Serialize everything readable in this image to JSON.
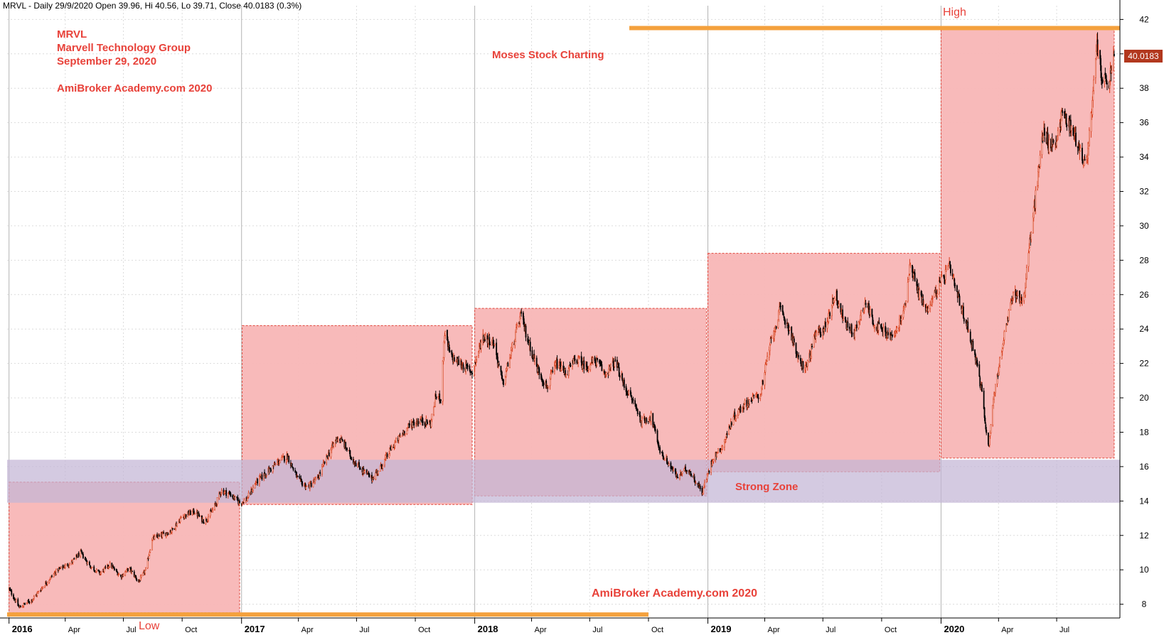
{
  "header": {
    "text": "MRVL - Daily 29/9/2020 Open 39.96, Hi 40.56, Lo 39.71, Close 40.0183 (0.3%)"
  },
  "annotations": {
    "ticker": "MRVL",
    "company": "Marvell Technology Group",
    "date": "September 29, 2020",
    "site_top": "AmiBroker Academy.com  2020",
    "site_bottom": "AmiBroker Academy.com  2020",
    "moses": "Moses Stock Charting",
    "high": "High",
    "low": "Low",
    "strong_zone": "Strong Zone"
  },
  "last_price": "40.0183",
  "colors": {
    "year_box_fill": "#f8b6b6",
    "year_box_border": "#e0453a",
    "strong_zone_fill": "#c4b6d6",
    "level_line": "#f4a13d",
    "annotation_text": "#e8423a",
    "candle_up": "#d8401e",
    "candle_down": "#000000",
    "last_price_box": "#b2381e"
  },
  "chart_data": {
    "type": "candlestick",
    "symbol": "MRVL",
    "interval": "Daily",
    "y_ticks": [
      8,
      10,
      12,
      14,
      16,
      18,
      20,
      22,
      24,
      26,
      28,
      30,
      32,
      34,
      36,
      38,
      40,
      42
    ],
    "ylim": [
      7.2,
      42.8
    ],
    "x_range": [
      "2016-01-01",
      "2020-10-08"
    ],
    "x_ticks": [
      {
        "label": "2016",
        "date": "2016-01-04",
        "major": true
      },
      {
        "label": "Apr",
        "date": "2016-04-01",
        "major": false
      },
      {
        "label": "Jul",
        "date": "2016-07-01",
        "major": false
      },
      {
        "label": "Oct",
        "date": "2016-10-01",
        "major": false
      },
      {
        "label": "2017",
        "date": "2017-01-02",
        "major": true
      },
      {
        "label": "Apr",
        "date": "2017-04-01",
        "major": false
      },
      {
        "label": "Jul",
        "date": "2017-07-01",
        "major": false
      },
      {
        "label": "Oct",
        "date": "2017-10-01",
        "major": false
      },
      {
        "label": "2018",
        "date": "2018-01-02",
        "major": true
      },
      {
        "label": "Apr",
        "date": "2018-04-01",
        "major": false
      },
      {
        "label": "Jul",
        "date": "2018-07-01",
        "major": false
      },
      {
        "label": "Oct",
        "date": "2018-10-01",
        "major": false
      },
      {
        "label": "2019",
        "date": "2019-01-02",
        "major": true
      },
      {
        "label": "Apr",
        "date": "2019-04-01",
        "major": false
      },
      {
        "label": "Jul",
        "date": "2019-07-01",
        "major": false
      },
      {
        "label": "Oct",
        "date": "2019-10-01",
        "major": false
      },
      {
        "label": "2020",
        "date": "2020-01-02",
        "major": true
      },
      {
        "label": "Apr",
        "date": "2020-04-01",
        "major": false
      },
      {
        "label": "Jul",
        "date": "2020-07-01",
        "major": false
      }
    ],
    "year_ranges": [
      {
        "year": 2016,
        "start": "2016-01-04",
        "end": "2016-12-30",
        "low": 7.5,
        "high": 15.1
      },
      {
        "year": 2017,
        "start": "2017-01-03",
        "end": "2017-12-29",
        "low": 13.8,
        "high": 24.2
      },
      {
        "year": 2018,
        "start": "2018-01-02",
        "end": "2018-12-31",
        "low": 14.3,
        "high": 25.2
      },
      {
        "year": 2019,
        "start": "2019-01-02",
        "end": "2019-12-31",
        "low": 15.7,
        "high": 28.4
      },
      {
        "year": 2020,
        "start": "2020-01-02",
        "end": "2020-09-29",
        "low": 16.5,
        "high": 41.4
      }
    ],
    "strong_zone": {
      "start": "2016-01-01",
      "end": "2020-10-08",
      "low": 13.9,
      "high": 16.4
    },
    "levels": [
      {
        "kind": "high",
        "value": 41.5,
        "start": "2018-09-01",
        "end": "2020-10-08"
      },
      {
        "kind": "low",
        "value": 7.4,
        "start": "2016-01-01",
        "end": "2018-10-01"
      }
    ],
    "price_path": [
      [
        "2016-01-04",
        8.9
      ],
      [
        "2016-01-20",
        7.8
      ],
      [
        "2016-02-10",
        8.3
      ],
      [
        "2016-03-01",
        9.2
      ],
      [
        "2016-03-20",
        10.0
      ],
      [
        "2016-04-10",
        10.4
      ],
      [
        "2016-04-25",
        11.0
      ],
      [
        "2016-05-10",
        10.2
      ],
      [
        "2016-05-25",
        9.8
      ],
      [
        "2016-06-10",
        10.3
      ],
      [
        "2016-06-27",
        9.6
      ],
      [
        "2016-07-10",
        10.1
      ],
      [
        "2016-07-25",
        9.3
      ],
      [
        "2016-08-05",
        10.0
      ],
      [
        "2016-08-15",
        11.8
      ],
      [
        "2016-08-30",
        12.0
      ],
      [
        "2016-09-15",
        12.3
      ],
      [
        "2016-10-01",
        13.1
      ],
      [
        "2016-10-20",
        13.4
      ],
      [
        "2016-11-05",
        12.8
      ],
      [
        "2016-11-20",
        13.6
      ],
      [
        "2016-12-01",
        14.6
      ],
      [
        "2016-12-15",
        14.4
      ],
      [
        "2016-12-30",
        13.9
      ],
      [
        "2017-01-10",
        14.1
      ],
      [
        "2017-01-25",
        15.1
      ],
      [
        "2017-02-15",
        15.8
      ],
      [
        "2017-03-01",
        16.3
      ],
      [
        "2017-03-15",
        16.6
      ],
      [
        "2017-04-01",
        15.2
      ],
      [
        "2017-04-15",
        14.8
      ],
      [
        "2017-05-01",
        15.3
      ],
      [
        "2017-05-15",
        16.5
      ],
      [
        "2017-06-01",
        17.7
      ],
      [
        "2017-06-10",
        17.4
      ],
      [
        "2017-06-25",
        16.4
      ],
      [
        "2017-07-10",
        15.8
      ],
      [
        "2017-07-25",
        15.3
      ],
      [
        "2017-08-10",
        16.1
      ],
      [
        "2017-08-25",
        17.1
      ],
      [
        "2017-09-10",
        17.9
      ],
      [
        "2017-09-25",
        18.5
      ],
      [
        "2017-10-10",
        18.7
      ],
      [
        "2017-10-25",
        18.5
      ],
      [
        "2017-11-02",
        20.1
      ],
      [
        "2017-11-10",
        20.0
      ],
      [
        "2017-11-16",
        23.8
      ],
      [
        "2017-11-25",
        22.4
      ],
      [
        "2017-12-10",
        22.0
      ],
      [
        "2017-12-29",
        21.5
      ],
      [
        "2018-01-15",
        23.6
      ],
      [
        "2018-02-01",
        23.2
      ],
      [
        "2018-02-15",
        20.8
      ],
      [
        "2018-03-01",
        22.8
      ],
      [
        "2018-03-15",
        24.8
      ],
      [
        "2018-03-25",
        23.5
      ],
      [
        "2018-04-10",
        21.7
      ],
      [
        "2018-04-25",
        20.6
      ],
      [
        "2018-05-10",
        22.0
      ],
      [
        "2018-05-25",
        21.4
      ],
      [
        "2018-06-10",
        22.3
      ],
      [
        "2018-06-25",
        21.8
      ],
      [
        "2018-07-10",
        22.2
      ],
      [
        "2018-07-25",
        21.4
      ],
      [
        "2018-08-10",
        22.1
      ],
      [
        "2018-08-25",
        20.6
      ],
      [
        "2018-09-10",
        19.6
      ],
      [
        "2018-09-20",
        18.6
      ],
      [
        "2018-10-05",
        18.9
      ],
      [
        "2018-10-20",
        16.8
      ],
      [
        "2018-11-01",
        16.2
      ],
      [
        "2018-11-15",
        15.4
      ],
      [
        "2018-12-01",
        15.9
      ],
      [
        "2018-12-15",
        15.1
      ],
      [
        "2018-12-24",
        14.5
      ],
      [
        "2019-01-10",
        16.5
      ],
      [
        "2019-01-25",
        17.2
      ],
      [
        "2019-02-10",
        18.8
      ],
      [
        "2019-02-25",
        19.5
      ],
      [
        "2019-03-10",
        19.9
      ],
      [
        "2019-03-25",
        20.2
      ],
      [
        "2019-04-10",
        23.2
      ],
      [
        "2019-04-25",
        25.1
      ],
      [
        "2019-05-10",
        24.0
      ],
      [
        "2019-05-25",
        22.0
      ],
      [
        "2019-06-05",
        21.8
      ],
      [
        "2019-06-20",
        23.7
      ],
      [
        "2019-07-05",
        24.1
      ],
      [
        "2019-07-20",
        26.1
      ],
      [
        "2019-08-05",
        24.3
      ],
      [
        "2019-08-20",
        23.8
      ],
      [
        "2019-09-05",
        25.6
      ],
      [
        "2019-09-20",
        24.3
      ],
      [
        "2019-10-05",
        23.8
      ],
      [
        "2019-10-20",
        23.5
      ],
      [
        "2019-11-05",
        25.1
      ],
      [
        "2019-11-15",
        27.9
      ],
      [
        "2019-11-25",
        26.4
      ],
      [
        "2019-12-10",
        25.1
      ],
      [
        "2019-12-31",
        26.6
      ],
      [
        "2020-01-15",
        27.6
      ],
      [
        "2020-01-28",
        25.9
      ],
      [
        "2020-02-10",
        24.4
      ],
      [
        "2020-02-25",
        22.4
      ],
      [
        "2020-03-05",
        20.5
      ],
      [
        "2020-03-16",
        17.1
      ],
      [
        "2020-03-25",
        20.2
      ],
      [
        "2020-04-10",
        23.6
      ],
      [
        "2020-04-25",
        26.2
      ],
      [
        "2020-05-10",
        25.6
      ],
      [
        "2020-05-20",
        29.1
      ],
      [
        "2020-06-01",
        32.6
      ],
      [
        "2020-06-10",
        35.6
      ],
      [
        "2020-06-20",
        34.6
      ],
      [
        "2020-07-01",
        35.1
      ],
      [
        "2020-07-10",
        36.6
      ],
      [
        "2020-07-25",
        35.6
      ],
      [
        "2020-08-05",
        34.6
      ],
      [
        "2020-08-15",
        33.3
      ],
      [
        "2020-08-25",
        36.6
      ],
      [
        "2020-09-02",
        40.6
      ],
      [
        "2020-09-10",
        38.6
      ],
      [
        "2020-09-20",
        38.1
      ],
      [
        "2020-09-29",
        40.0
      ]
    ]
  }
}
